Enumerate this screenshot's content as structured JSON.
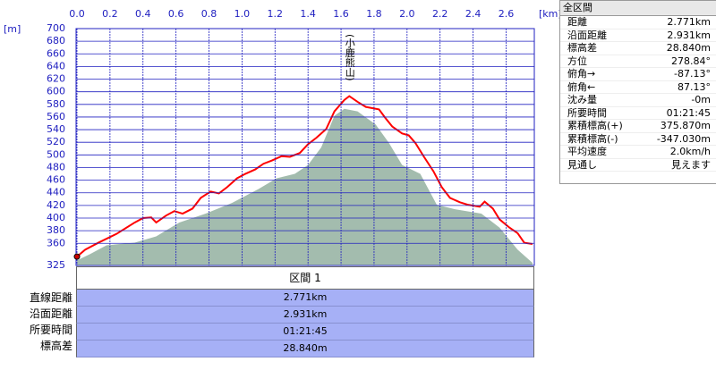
{
  "chart_data": {
    "type": "line",
    "x_unit_label": "[km]",
    "y_unit_label": "[m]",
    "annotations": [
      {
        "text": "(小鹿熊山)",
        "x": 1.65
      }
    ],
    "xlim": [
      0,
      2.771
    ],
    "xticks": [
      {
        "value": 0,
        "label": "0.0"
      },
      0.2,
      0.4,
      0.6,
      0.8,
      {
        "value": 1,
        "label": "1.0"
      },
      1.2,
      1.4,
      1.6,
      1.8,
      {
        "value": 2,
        "label": "2.0"
      },
      2.2,
      2.4,
      2.6
    ],
    "ylim": [
      325,
      700
    ],
    "yticks": [
      325,
      360,
      380,
      400,
      420,
      440,
      460,
      480,
      500,
      520,
      540,
      560,
      580,
      600,
      620,
      640,
      660,
      680,
      700
    ],
    "grid": true,
    "series": [
      {
        "style": "area",
        "color": "#a3bcae",
        "x": [
          0,
          0.08,
          0.18,
          0.35,
          0.48,
          0.62,
          0.78,
          0.94,
          1.1,
          1.21,
          1.32,
          1.4,
          1.48,
          1.56,
          1.62,
          1.7,
          1.81,
          1.89,
          1.97,
          2.08,
          2.18,
          2.29,
          2.45,
          2.56,
          2.67,
          2.76
        ],
        "values": [
          333,
          343,
          357,
          361,
          371,
          393,
          407,
          424,
          446,
          463,
          470,
          484,
          512,
          562,
          573,
          569,
          548,
          519,
          484,
          470,
          421,
          414,
          407,
          385,
          350,
          329
        ]
      },
      {
        "style": "line",
        "color": "#ff0000",
        "x": [
          0,
          0.05,
          0.13,
          0.24,
          0.35,
          0.4,
          0.45,
          0.48,
          0.54,
          0.59,
          0.64,
          0.7,
          0.75,
          0.81,
          0.86,
          0.91,
          0.97,
          1.02,
          1.08,
          1.13,
          1.18,
          1.24,
          1.29,
          1.35,
          1.4,
          1.45,
          1.51,
          1.56,
          1.62,
          1.65,
          1.7,
          1.75,
          1.83,
          1.87,
          1.91,
          1.97,
          2.01,
          2.05,
          2.1,
          2.16,
          2.21,
          2.26,
          2.32,
          2.37,
          2.44,
          2.47,
          2.52,
          2.56,
          2.62,
          2.67,
          2.71,
          2.76
        ],
        "values": [
          339,
          350,
          361,
          375,
          393,
          400,
          401,
          393,
          404,
          411,
          407,
          415,
          432,
          442,
          439,
          449,
          463,
          470,
          477,
          486,
          491,
          498,
          497,
          503,
          517,
          527,
          541,
          569,
          587,
          593,
          584,
          576,
          572,
          558,
          545,
          534,
          531,
          519,
          498,
          474,
          449,
          432,
          425,
          421,
          418,
          426,
          415,
          398,
          385,
          376,
          361,
          359
        ]
      }
    ]
  },
  "section": {
    "title": "区間 1",
    "rows": [
      {
        "label": "直線距離",
        "value": "2.771km"
      },
      {
        "label": "沿面距離",
        "value": "2.931km"
      },
      {
        "label": "所要時間",
        "value": "01:21:45"
      },
      {
        "label": "標高差",
        "value": "28.840m"
      }
    ]
  },
  "summary": {
    "title": "全区間",
    "rows": [
      {
        "label": "距離",
        "value": "2.771km"
      },
      {
        "label": "沿面距離",
        "value": "2.931km"
      },
      {
        "label": "標高差",
        "value": "28.840m"
      },
      {
        "label": "方位",
        "value": "278.84°"
      },
      {
        "label": "俯角→",
        "value": "-87.13°"
      },
      {
        "label": "俯角←",
        "value": "87.13°"
      },
      {
        "label": "沈み量",
        "value": "-0m"
      },
      {
        "label": "所要時間",
        "value": "01:21:45"
      },
      {
        "label": "累積標高(+)",
        "value": "375.870m"
      },
      {
        "label": "累積標高(-)",
        "value": "-347.030m"
      },
      {
        "label": "平均速度",
        "value": "2.0km/h"
      },
      {
        "label": "見通し",
        "value": "見えます"
      }
    ]
  }
}
